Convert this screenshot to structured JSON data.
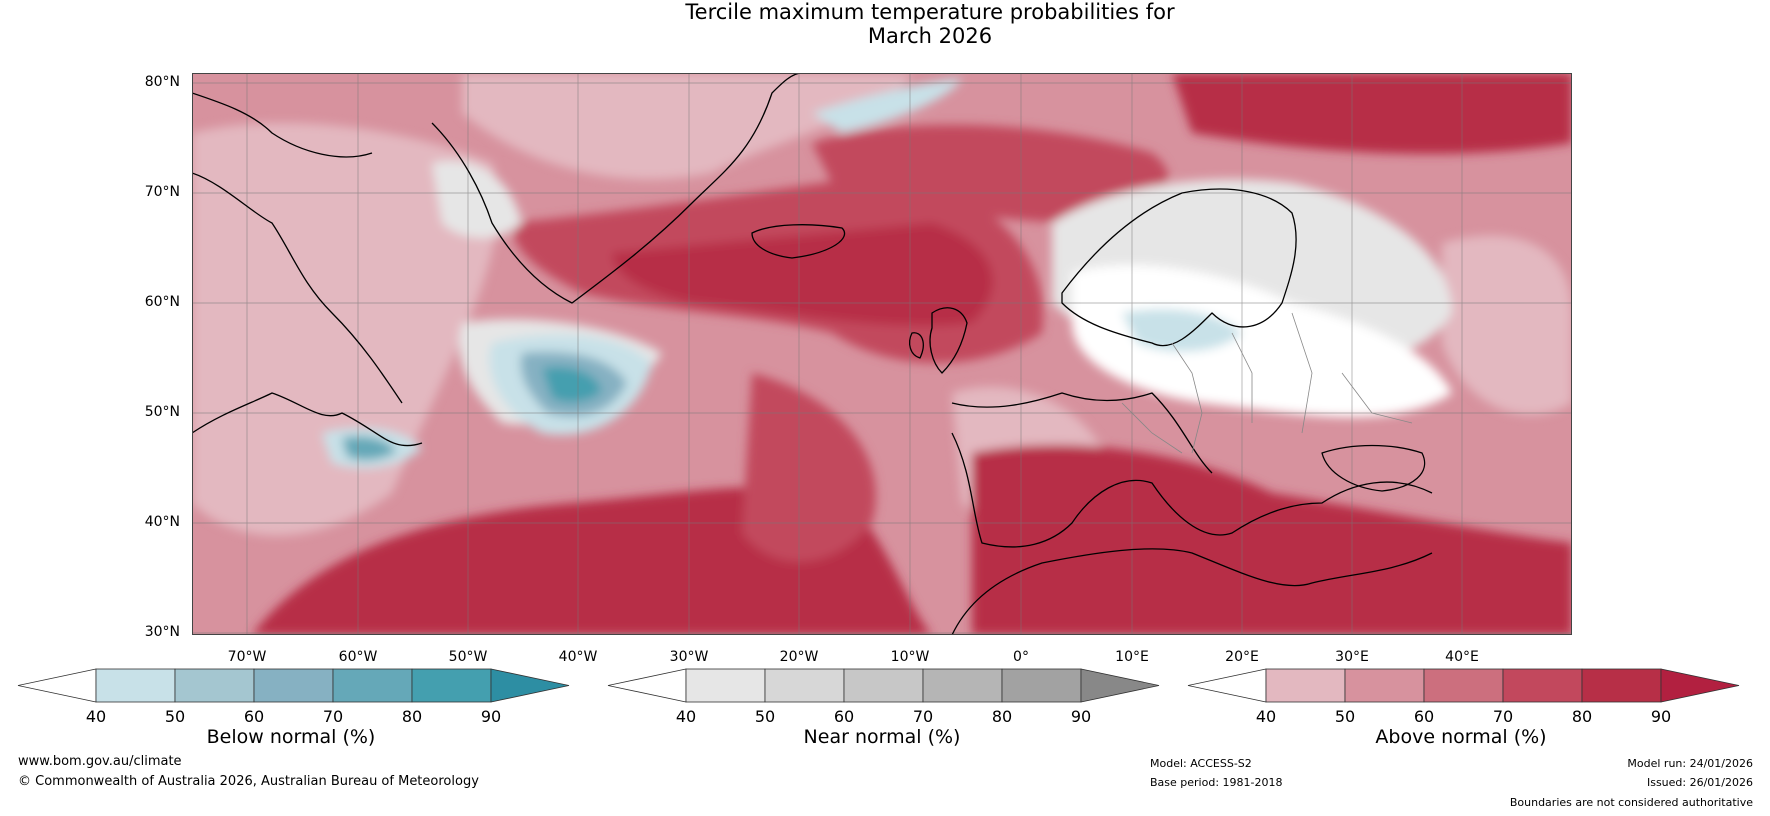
{
  "title_line1": "Tercile maximum temperature probabilities for",
  "title_line2": "March 2026",
  "lat_labels": [
    "80°N",
    "70°N",
    "60°N",
    "50°N",
    "40°N",
    "30°N"
  ],
  "lon_labels": [
    "70°W",
    "60°W",
    "50°W",
    "40°W",
    "30°W",
    "20°W",
    "10°W",
    "0°",
    "10°E",
    "20°E",
    "30°E",
    "40°E"
  ],
  "colorbars": [
    {
      "title": "Below normal (%)",
      "ticks": [
        "40",
        "50",
        "60",
        "70",
        "80",
        "90"
      ],
      "colors": [
        "#c8e1e8",
        "#a4c6d0",
        "#86b1c2",
        "#65a8b8",
        "#449faf"
      ],
      "extend_low": "#ffffff",
      "extend_high": "#2d8ea3"
    },
    {
      "title": "Near normal (%)",
      "ticks": [
        "40",
        "50",
        "60",
        "70",
        "80",
        "90"
      ],
      "colors": [
        "#e6e6e6",
        "#d7d7d7",
        "#c7c7c7",
        "#b5b5b5",
        "#a2a2a2"
      ],
      "extend_low": "#ffffff",
      "extend_high": "#888888"
    },
    {
      "title": "Above normal (%)",
      "ticks": [
        "40",
        "50",
        "60",
        "70",
        "80",
        "90"
      ],
      "colors": [
        "#e3b8c0",
        "#d7929e",
        "#cc6f7e",
        "#c2485d",
        "#b72f47"
      ],
      "extend_low": "#ffffff",
      "extend_high": "#b22040"
    }
  ],
  "footer": {
    "website": "www.bom.gov.au/climate",
    "copyright": "© Commonwealth of Australia 2026, Australian Bureau of Meteorology",
    "model": "Model: ACCESS-S2",
    "base_period": "Base period: 1981-2018",
    "model_run": "Model run: 24/01/2026",
    "issued": "Issued: 26/01/2026",
    "disclaimer": "Boundaries are not considered authoritative"
  },
  "colors": {
    "ocean_base": "#d7929e",
    "grid": "#777777",
    "coast": "#000000",
    "border": "#888888"
  }
}
